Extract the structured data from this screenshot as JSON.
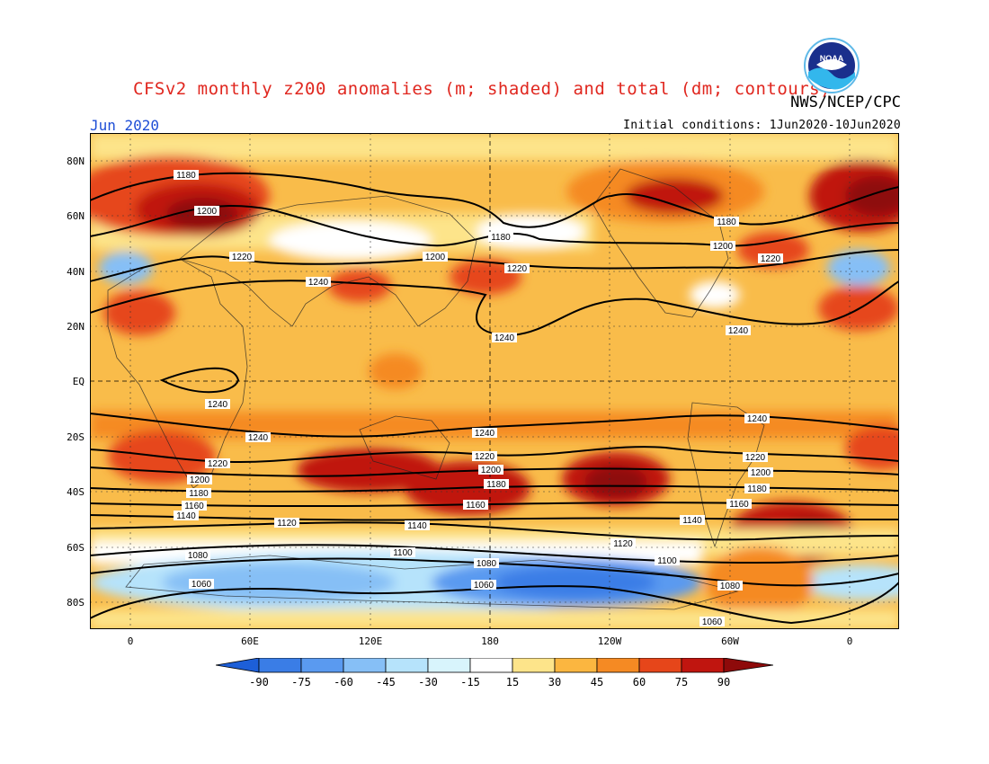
{
  "header": {
    "title": "CFSv2 monthly z200 anomalies (m; shaded) and total (dm; contours)",
    "agency": "NWS/NCEP/CPC",
    "month": "Jun 2020",
    "initial_conditions": "Initial conditions: 1Jun2020-10Jun2020",
    "logo_text": "NOAA"
  },
  "axes": {
    "y_ticks": [
      "80N",
      "60N",
      "40N",
      "20N",
      "EQ",
      "20S",
      "40S",
      "60S",
      "80S"
    ],
    "x_ticks": [
      "0",
      "60E",
      "120E",
      "180",
      "120W",
      "60W",
      "0"
    ]
  },
  "colorbar": {
    "labels": [
      "-90",
      "-75",
      "-60",
      "-45",
      "-30",
      "-15",
      "15",
      "30",
      "45",
      "60",
      "75",
      "90"
    ],
    "colors": [
      "#1d5fd8",
      "#3a7de6",
      "#5a9af0",
      "#86bff6",
      "#b6e3fb",
      "#d8f4fc",
      "#ffffff",
      "#fde48a",
      "#fbb640",
      "#f58a23",
      "#e6461a",
      "#c0150f",
      "#8e0a0a"
    ]
  },
  "contour_labels": [
    "1180",
    "1200",
    "1220",
    "1240",
    "1160",
    "1140",
    "1120",
    "1100",
    "1080",
    "1060"
  ],
  "colors": {
    "title": "#e0271f",
    "month": "#1f4fd6",
    "background": "#f9bc4a"
  }
}
